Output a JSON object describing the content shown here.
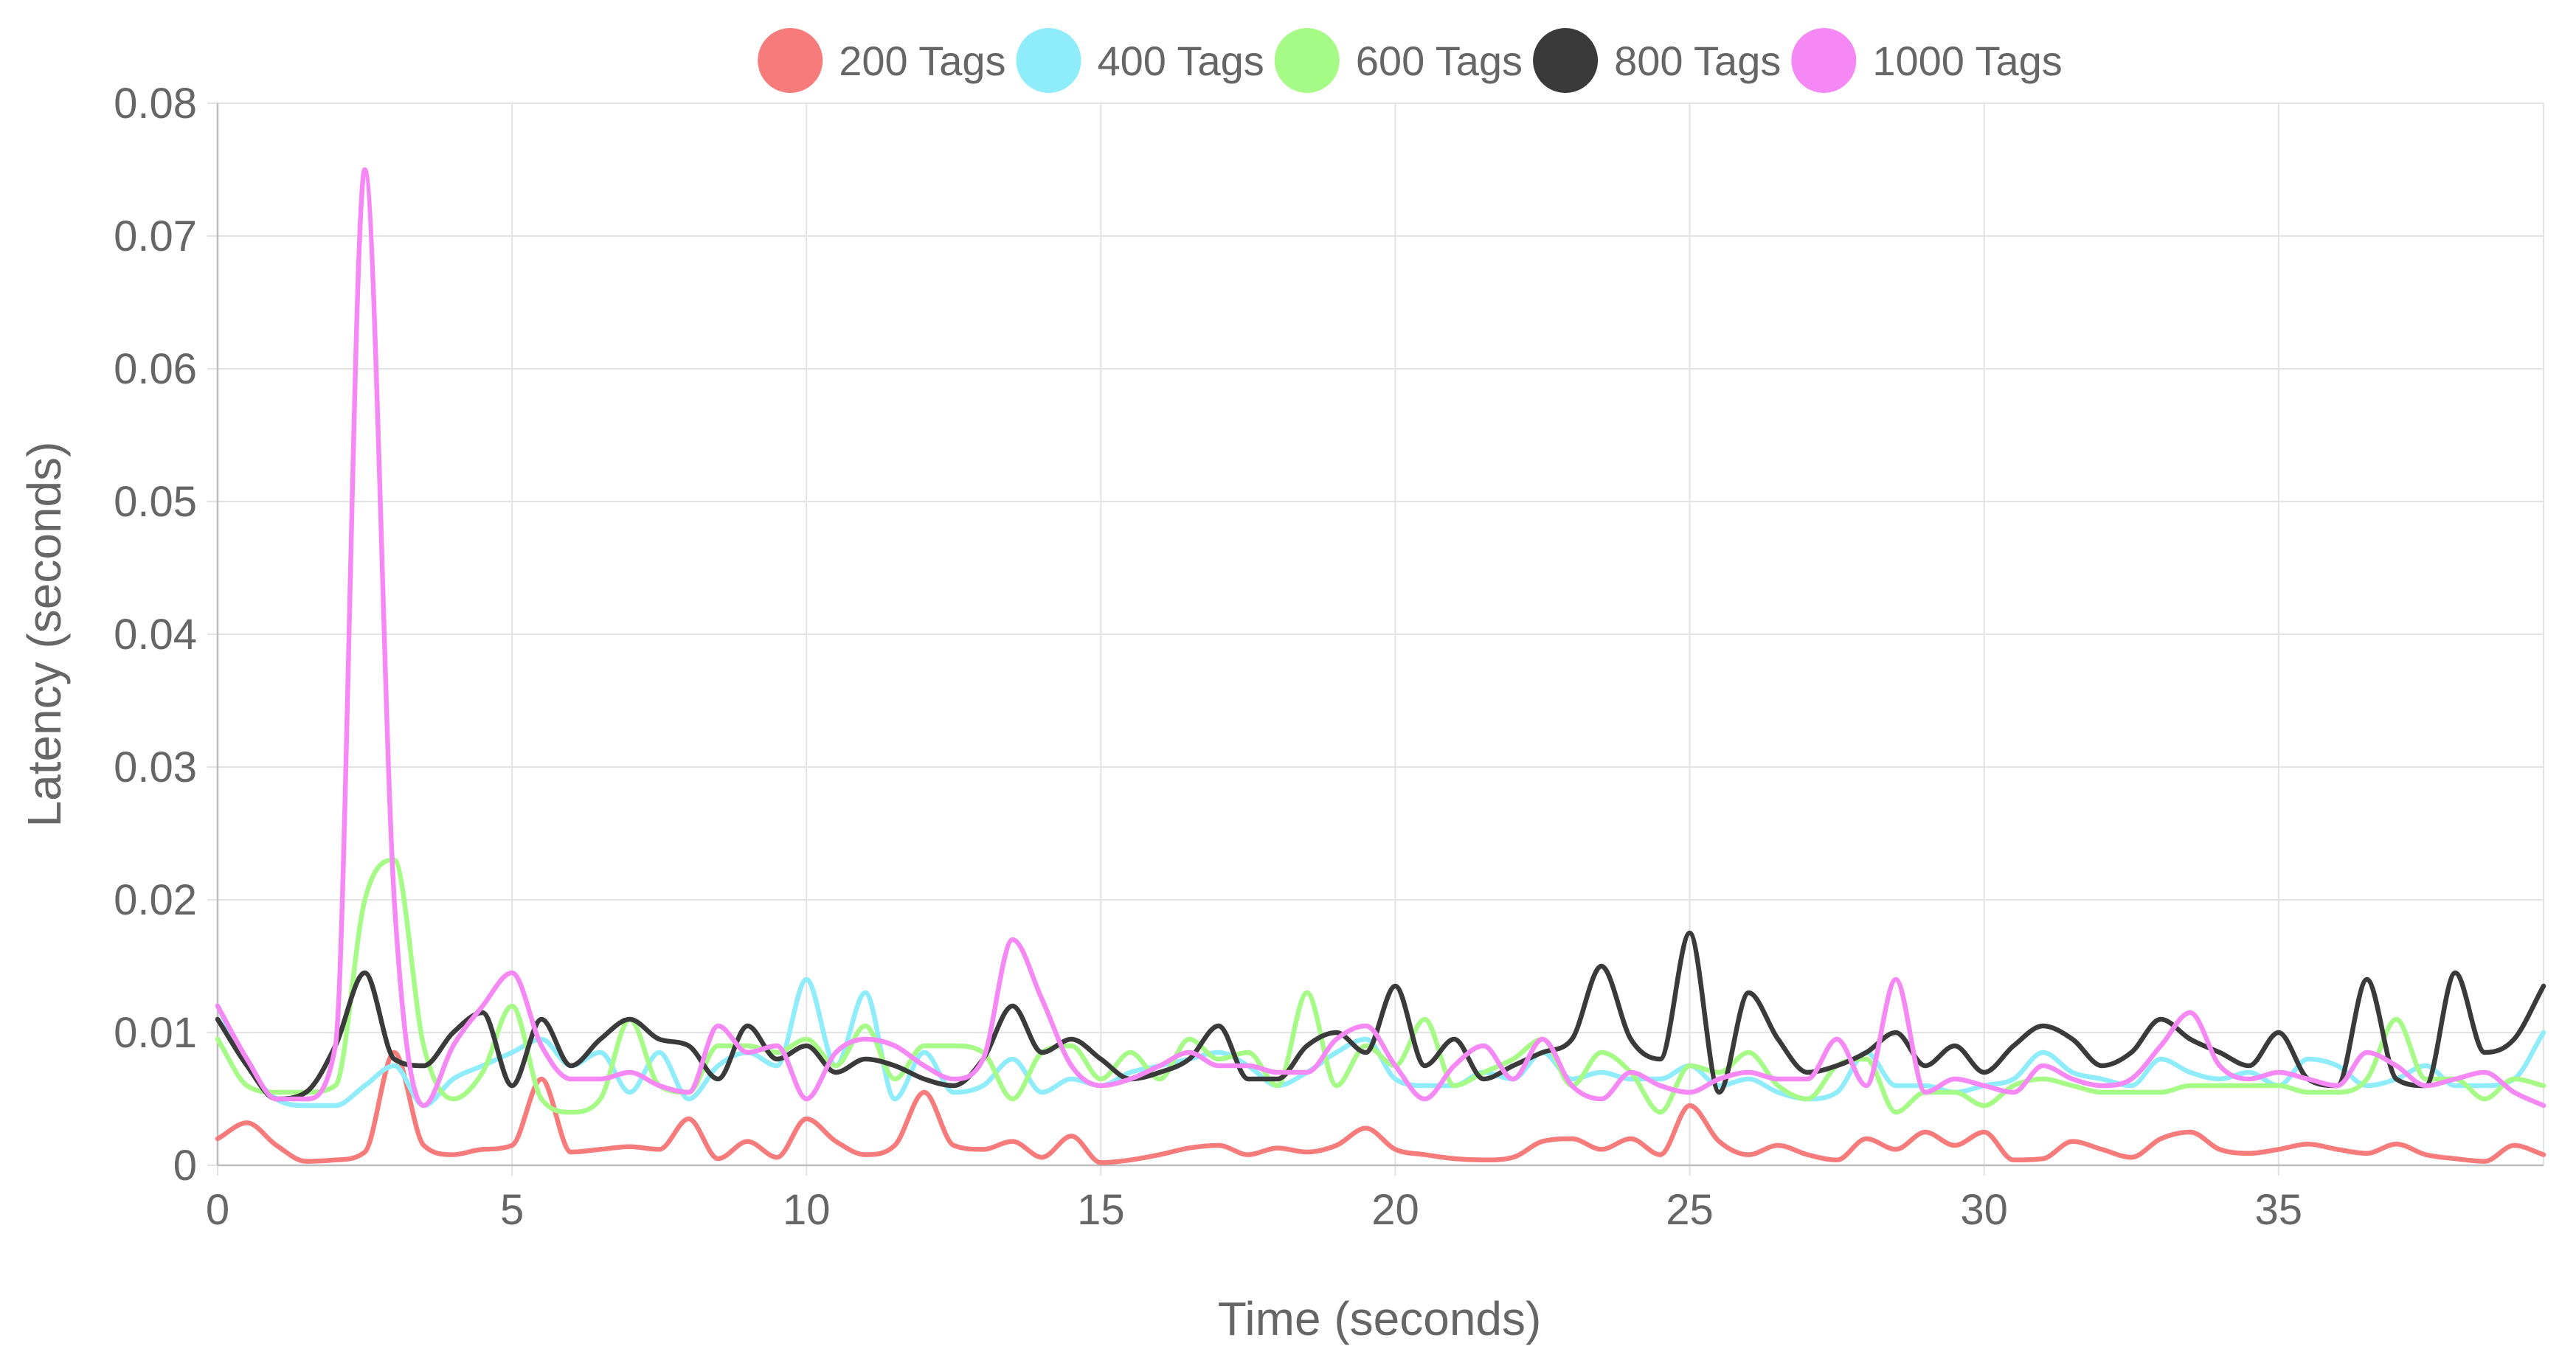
{
  "chart_data": {
    "type": "line",
    "title": "",
    "xlabel": "Time (seconds)",
    "ylabel": "Latency (seconds)",
    "xlim": [
      0,
      39.5
    ],
    "ylim": [
      0,
      0.08
    ],
    "x_ticks": [
      0,
      5,
      10,
      15,
      20,
      25,
      30,
      35
    ],
    "y_ticks": [
      0,
      0.01,
      0.02,
      0.03,
      0.04,
      0.05,
      0.06,
      0.07,
      0.08
    ],
    "y_tick_labels": [
      "0",
      "0.01",
      "0.02",
      "0.03",
      "0.04",
      "0.05",
      "0.06",
      "0.07",
      "0.08"
    ],
    "grid": true,
    "legend_position": "top",
    "x": [
      0,
      0.5,
      1,
      1.5,
      2,
      2.5,
      3,
      3.5,
      4,
      4.5,
      5,
      5.5,
      6,
      6.5,
      7,
      7.5,
      8,
      8.5,
      9,
      9.5,
      10,
      10.5,
      11,
      11.5,
      12,
      12.5,
      13,
      13.5,
      14,
      14.5,
      15,
      15.5,
      16,
      16.5,
      17,
      17.5,
      18,
      18.5,
      19,
      19.5,
      20,
      20.5,
      21,
      21.5,
      22,
      22.5,
      23,
      23.5,
      24,
      24.5,
      25,
      25.5,
      26,
      26.5,
      27,
      27.5,
      28,
      28.5,
      29,
      29.5,
      30,
      30.5,
      31,
      31.5,
      32,
      32.5,
      33,
      33.5,
      34,
      34.5,
      35,
      35.5,
      36,
      36.5,
      37,
      37.5,
      38,
      38.5,
      39,
      39.5
    ],
    "series": [
      {
        "name": "200 Tags",
        "color": "#f77b7b",
        "values": [
          0.002,
          0.0032,
          0.0015,
          0.0003,
          0.0004,
          0.001,
          0.0085,
          0.0015,
          0.0008,
          0.0012,
          0.0015,
          0.0065,
          0.001,
          0.0012,
          0.0014,
          0.0012,
          0.0035,
          0.0005,
          0.0018,
          0.0006,
          0.0035,
          0.0018,
          0.0008,
          0.0015,
          0.0055,
          0.0015,
          0.0012,
          0.0018,
          0.0006,
          0.0022,
          0.0002,
          0.0004,
          0.0008,
          0.0013,
          0.0015,
          0.0008,
          0.0013,
          0.001,
          0.0015,
          0.0028,
          0.0012,
          0.0008,
          0.0005,
          0.0004,
          0.0006,
          0.0018,
          0.002,
          0.0012,
          0.002,
          0.0008,
          0.0045,
          0.0018,
          0.0008,
          0.0015,
          0.0008,
          0.0004,
          0.002,
          0.0012,
          0.0025,
          0.0015,
          0.0025,
          0.0004,
          0.0005,
          0.0018,
          0.0012,
          0.0006,
          0.002,
          0.0025,
          0.0012,
          0.0009,
          0.0012,
          0.0016,
          0.0012,
          0.0009,
          0.0016,
          0.0008,
          0.0005,
          0.0003,
          0.0015,
          0.0008
        ]
      },
      {
        "name": "400 Tags",
        "color": "#8eecfb",
        "values": [
          0.012,
          0.0075,
          0.005,
          0.0045,
          0.0045,
          0.006,
          0.0075,
          0.0045,
          0.0065,
          0.0075,
          0.0085,
          0.0095,
          0.0075,
          0.0085,
          0.0055,
          0.0085,
          0.005,
          0.0075,
          0.0085,
          0.0075,
          0.014,
          0.0075,
          0.013,
          0.005,
          0.0085,
          0.0055,
          0.006,
          0.008,
          0.0055,
          0.0065,
          0.006,
          0.007,
          0.0075,
          0.008,
          0.0085,
          0.0075,
          0.006,
          0.007,
          0.0085,
          0.0095,
          0.0065,
          0.006,
          0.006,
          0.007,
          0.0065,
          0.0085,
          0.0065,
          0.007,
          0.0065,
          0.0065,
          0.0075,
          0.006,
          0.0065,
          0.0055,
          0.005,
          0.0055,
          0.0085,
          0.006,
          0.006,
          0.0055,
          0.006,
          0.0065,
          0.0085,
          0.007,
          0.0065,
          0.006,
          0.008,
          0.007,
          0.0065,
          0.007,
          0.006,
          0.008,
          0.0075,
          0.006,
          0.0065,
          0.0075,
          0.006,
          0.006,
          0.0065,
          0.01
        ]
      },
      {
        "name": "600 Tags",
        "color": "#a5fb86",
        "values": [
          0.0095,
          0.006,
          0.0055,
          0.0055,
          0.006,
          0.02,
          0.023,
          0.009,
          0.005,
          0.007,
          0.012,
          0.005,
          0.004,
          0.005,
          0.011,
          0.006,
          0.0055,
          0.009,
          0.009,
          0.0085,
          0.0095,
          0.0075,
          0.0105,
          0.0065,
          0.009,
          0.009,
          0.0085,
          0.005,
          0.0085,
          0.009,
          0.0065,
          0.0085,
          0.0065,
          0.0095,
          0.008,
          0.0085,
          0.006,
          0.013,
          0.006,
          0.009,
          0.0075,
          0.011,
          0.006,
          0.007,
          0.008,
          0.0095,
          0.006,
          0.0085,
          0.007,
          0.004,
          0.0075,
          0.007,
          0.0085,
          0.006,
          0.005,
          0.0075,
          0.008,
          0.004,
          0.0055,
          0.0055,
          0.0045,
          0.006,
          0.0065,
          0.006,
          0.0055,
          0.0055,
          0.0055,
          0.006,
          0.006,
          0.006,
          0.006,
          0.0055,
          0.0055,
          0.0065,
          0.011,
          0.0065,
          0.0065,
          0.005,
          0.0065,
          0.006
        ]
      },
      {
        "name": "800 Tags",
        "color": "#3a3a3a",
        "values": [
          0.011,
          0.0075,
          0.005,
          0.0055,
          0.009,
          0.0145,
          0.008,
          0.0075,
          0.01,
          0.0115,
          0.006,
          0.011,
          0.0075,
          0.0095,
          0.011,
          0.0095,
          0.009,
          0.0065,
          0.0105,
          0.008,
          0.009,
          0.007,
          0.008,
          0.0075,
          0.0065,
          0.006,
          0.008,
          0.012,
          0.0085,
          0.0095,
          0.008,
          0.0065,
          0.007,
          0.008,
          0.0105,
          0.0065,
          0.0065,
          0.009,
          0.01,
          0.0085,
          0.0135,
          0.0075,
          0.0095,
          0.0065,
          0.0075,
          0.0085,
          0.0095,
          0.015,
          0.0095,
          0.008,
          0.0175,
          0.0055,
          0.013,
          0.0095,
          0.007,
          0.0075,
          0.0085,
          0.01,
          0.0075,
          0.009,
          0.007,
          0.009,
          0.0105,
          0.0095,
          0.0075,
          0.0085,
          0.011,
          0.0095,
          0.0085,
          0.0075,
          0.01,
          0.0065,
          0.006,
          0.014,
          0.0065,
          0.006,
          0.0145,
          0.0085,
          0.0095,
          0.0135
        ]
      },
      {
        "name": "1000 Tags",
        "color": "#f588f5",
        "values": [
          0.012,
          0.008,
          0.005,
          0.005,
          0.009,
          0.075,
          0.02,
          0.0045,
          0.009,
          0.012,
          0.0145,
          0.009,
          0.0065,
          0.0065,
          0.007,
          0.006,
          0.0055,
          0.0105,
          0.0085,
          0.009,
          0.005,
          0.0085,
          0.0095,
          0.009,
          0.0075,
          0.0065,
          0.008,
          0.017,
          0.0125,
          0.0075,
          0.006,
          0.0065,
          0.0075,
          0.0085,
          0.0075,
          0.0075,
          0.007,
          0.007,
          0.0095,
          0.0105,
          0.0075,
          0.005,
          0.0075,
          0.009,
          0.0065,
          0.0095,
          0.006,
          0.005,
          0.007,
          0.006,
          0.0055,
          0.0065,
          0.007,
          0.0065,
          0.0065,
          0.0095,
          0.006,
          0.014,
          0.0055,
          0.0065,
          0.006,
          0.0055,
          0.0075,
          0.0065,
          0.006,
          0.0065,
          0.009,
          0.0115,
          0.0075,
          0.0065,
          0.007,
          0.0065,
          0.006,
          0.0085,
          0.0075,
          0.006,
          0.0065,
          0.007,
          0.0055,
          0.0045
        ]
      }
    ]
  }
}
